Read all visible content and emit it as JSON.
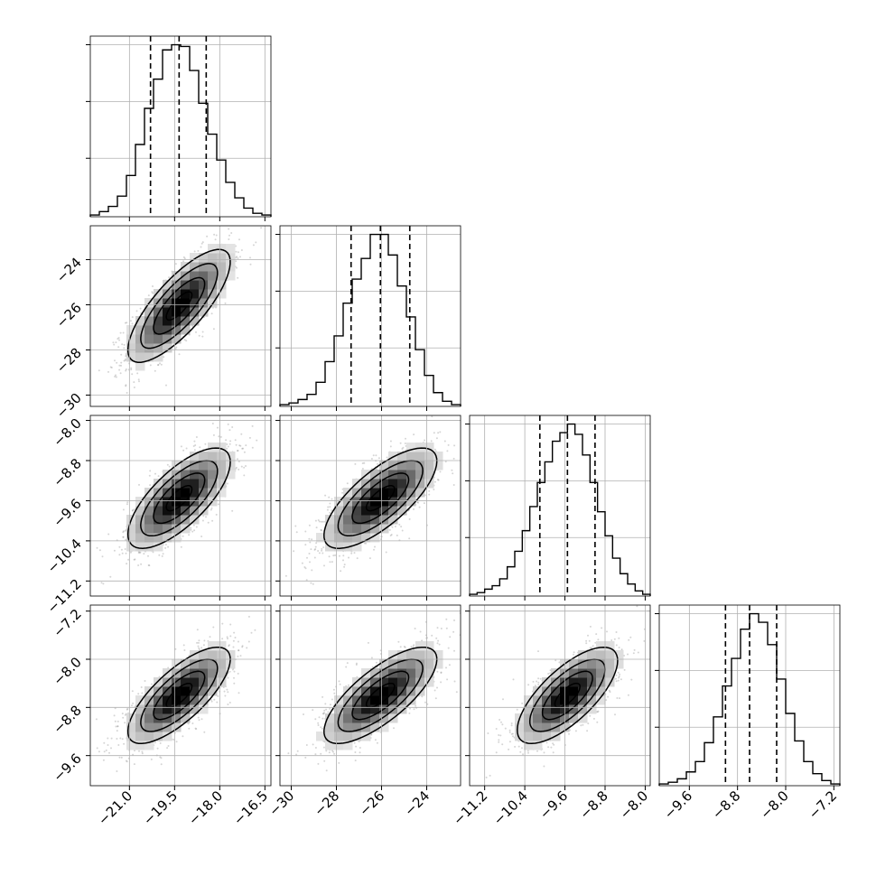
{
  "figure": {
    "kind": "corner-plot",
    "panel_style": "1d histograms on diagonal, 2d density + contours below"
  },
  "colors": {
    "hist": "#000000",
    "quantile_line": "#000000",
    "grid": "#b0b0b0",
    "scatter": "#888888",
    "density_dark": "#000000",
    "density_light": "#ffffff"
  },
  "chart_data": [
    {
      "type": "bar",
      "panel": "hist-param-1",
      "row": 0,
      "col": 0,
      "bin_edges": [
        -22.3,
        -22.0,
        -21.7,
        -21.4,
        -21.1,
        -20.8,
        -20.5,
        -20.2,
        -19.9,
        -19.6,
        -19.3,
        -19.0,
        -18.7,
        -18.4,
        -18.1,
        -17.8,
        -17.5,
        -17.2,
        -16.9,
        -16.6,
        -16.3
      ],
      "values": [
        1,
        3,
        6,
        12,
        24,
        42,
        63,
        80,
        97,
        100,
        99,
        85,
        66,
        48,
        33,
        20,
        11,
        5,
        2,
        1
      ],
      "quantiles": [
        -20.3,
        -19.35,
        -18.45
      ],
      "xlim": [
        -22.3,
        -16.3
      ],
      "grid": true
    },
    {
      "type": "bar",
      "panel": "hist-param-2",
      "row": 1,
      "col": 1,
      "bin_edges": [
        -30.5,
        -30.1,
        -29.7,
        -29.3,
        -28.9,
        -28.5,
        -28.1,
        -27.7,
        -27.3,
        -26.9,
        -26.5,
        -26.1,
        -25.7,
        -25.3,
        -24.9,
        -24.5,
        -24.1,
        -23.7,
        -23.3,
        -22.9,
        -22.5
      ],
      "values": [
        1,
        2,
        4,
        7,
        14,
        26,
        41,
        60,
        74,
        86,
        100,
        100,
        88,
        70,
        52,
        33,
        18,
        8,
        3,
        1
      ],
      "quantiles": [
        -27.35,
        -26.05,
        -24.75
      ],
      "xlim": [
        -30.5,
        -22.5
      ],
      "grid": true
    },
    {
      "type": "bar",
      "panel": "hist-param-3",
      "row": 2,
      "col": 2,
      "bin_edges": [
        -11.5,
        -11.35,
        -11.2,
        -11.05,
        -10.9,
        -10.75,
        -10.6,
        -10.45,
        -10.3,
        -10.15,
        -10.0,
        -9.85,
        -9.7,
        -9.55,
        -9.4,
        -9.25,
        -9.1,
        -8.95,
        -8.8,
        -8.65,
        -8.5,
        -8.35,
        -8.2,
        -8.05,
        -7.9
      ],
      "values": [
        1,
        2,
        4,
        6,
        10,
        17,
        26,
        38,
        52,
        66,
        78,
        90,
        95,
        100,
        94,
        82,
        66,
        49,
        35,
        22,
        13,
        7,
        3,
        1
      ],
      "quantiles": [
        -10.1,
        -9.55,
        -9.0
      ],
      "xlim": [
        -11.5,
        -7.9
      ],
      "grid": true
    },
    {
      "type": "bar",
      "panel": "hist-param-4",
      "row": 3,
      "col": 3,
      "bin_edges": [
        -10.1,
        -9.95,
        -9.8,
        -9.65,
        -9.5,
        -9.35,
        -9.2,
        -9.05,
        -8.9,
        -8.75,
        -8.6,
        -8.45,
        -8.3,
        -8.15,
        -8.0,
        -7.85,
        -7.7,
        -7.55,
        -7.4,
        -7.25,
        -7.1
      ],
      "values": [
        1,
        2,
        4,
        8,
        14,
        25,
        40,
        58,
        74,
        91,
        100,
        95,
        82,
        62,
        42,
        26,
        14,
        7,
        3,
        1
      ],
      "quantiles": [
        -9.0,
        -8.6,
        -8.15
      ],
      "xlim": [
        -10.1,
        -7.1
      ],
      "grid": true
    },
    {
      "type": "scatter",
      "panel": "density-2-vs-1",
      "row": 1,
      "col": 0,
      "x_param": 0,
      "y_param": 1,
      "correlation": 0.78,
      "xlim": [
        -22.3,
        -16.3
      ],
      "ylim": [
        -30.5,
        -22.5
      ],
      "contours": true,
      "grid": true
    },
    {
      "type": "scatter",
      "panel": "density-3-vs-1",
      "row": 2,
      "col": 0,
      "x_param": 0,
      "y_param": 2,
      "correlation": 0.72,
      "xlim": [
        -22.3,
        -16.3
      ],
      "ylim": [
        -11.5,
        -7.9
      ],
      "contours": true,
      "grid": true
    },
    {
      "type": "scatter",
      "panel": "density-3-vs-2",
      "row": 2,
      "col": 1,
      "x_param": 1,
      "y_param": 2,
      "correlation": 0.74,
      "xlim": [
        -30.5,
        -22.5
      ],
      "ylim": [
        -11.5,
        -7.9
      ],
      "contours": true,
      "grid": true
    },
    {
      "type": "scatter",
      "panel": "density-4-vs-1",
      "row": 3,
      "col": 0,
      "x_param": 0,
      "y_param": 3,
      "correlation": 0.75,
      "xlim": [
        -22.3,
        -16.3
      ],
      "ylim": [
        -10.1,
        -7.1
      ],
      "contours": true,
      "grid": true
    },
    {
      "type": "scatter",
      "panel": "density-4-vs-2",
      "row": 3,
      "col": 1,
      "x_param": 1,
      "y_param": 3,
      "correlation": 0.75,
      "xlim": [
        -30.5,
        -22.5
      ],
      "ylim": [
        -10.1,
        -7.1
      ],
      "contours": true,
      "grid": true
    },
    {
      "type": "scatter",
      "panel": "density-4-vs-3",
      "row": 3,
      "col": 2,
      "x_param": 2,
      "y_param": 3,
      "correlation": 0.72,
      "xlim": [
        -11.5,
        -7.9
      ],
      "ylim": [
        -10.1,
        -7.1
      ],
      "contours": true,
      "grid": true
    }
  ],
  "params": [
    {
      "mean": -19.35,
      "sd": 0.85,
      "xlim": [
        -22.3,
        -16.3
      ]
    },
    {
      "mean": -26.05,
      "sd": 1.25,
      "xlim": [
        -30.5,
        -22.5
      ]
    },
    {
      "mean": -9.55,
      "sd": 0.5,
      "xlim": [
        -11.5,
        -7.9
      ]
    },
    {
      "mean": -8.6,
      "sd": 0.4,
      "xlim": [
        -10.1,
        -7.1
      ]
    }
  ],
  "ticks": {
    "bottom": [
      [
        {
          "v": -21.0,
          "label": "−21.0"
        },
        {
          "v": -19.5,
          "label": "−19.5"
        },
        {
          "v": -18.0,
          "label": "−18.0"
        },
        {
          "v": -16.5,
          "label": "−16.5"
        }
      ],
      [
        {
          "v": -30,
          "label": "−30"
        },
        {
          "v": -28,
          "label": "−28"
        },
        {
          "v": -26,
          "label": "−26"
        },
        {
          "v": -24,
          "label": "−24"
        }
      ],
      [
        {
          "v": -11.2,
          "label": "−11.2"
        },
        {
          "v": -10.4,
          "label": "−10.4"
        },
        {
          "v": -9.6,
          "label": "−9.6"
        },
        {
          "v": -8.8,
          "label": "−8.8"
        },
        {
          "v": -8.0,
          "label": "−8.0"
        }
      ],
      [
        {
          "v": -9.6,
          "label": "−9.6"
        },
        {
          "v": -8.8,
          "label": "−8.8"
        },
        {
          "v": -8.0,
          "label": "−8.0"
        },
        {
          "v": -7.2,
          "label": "−7.2"
        }
      ]
    ],
    "left": [
      null,
      [
        {
          "v": -24,
          "label": "−24"
        },
        {
          "v": -26,
          "label": "−26"
        },
        {
          "v": -28,
          "label": "−28"
        },
        {
          "v": -30,
          "label": "−30"
        }
      ],
      [
        {
          "v": -8.0,
          "label": "−8.0"
        },
        {
          "v": -8.8,
          "label": "−8.8"
        },
        {
          "v": -9.6,
          "label": "−9.6"
        },
        {
          "v": -10.4,
          "label": "−10.4"
        },
        {
          "v": -11.2,
          "label": "−11.2"
        }
      ],
      [
        {
          "v": -7.2,
          "label": "−7.2"
        },
        {
          "v": -8.0,
          "label": "−8.0"
        },
        {
          "v": -8.8,
          "label": "−8.8"
        },
        {
          "v": -9.6,
          "label": "−9.6"
        }
      ]
    ]
  }
}
